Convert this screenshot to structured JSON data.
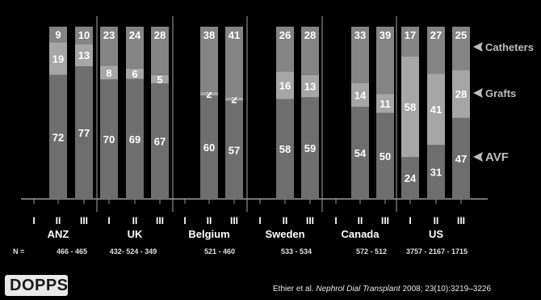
{
  "chart_data": {
    "type": "bar",
    "stacked": true,
    "colors": {
      "AVF": "#6e6e6e",
      "Grafts": "#a6a6a6",
      "Catheters": "#848484",
      "text": "#ffffff",
      "legend_text": "#bdbdbd"
    },
    "legend": [
      "Catheters",
      "Grafts",
      "AVF"
    ],
    "n_label": "N =",
    "countries": [
      {
        "name": "ANZ",
        "n_label": "466 - 465",
        "phases": [
          {
            "label": "II",
            "AVF": 72,
            "Grafts": 19,
            "Catheters": 9
          },
          {
            "label": "III",
            "AVF": 77,
            "Grafts": 13,
            "Catheters": 10
          }
        ],
        "tick_labels": [
          "I",
          "II",
          "III"
        ]
      },
      {
        "name": "UK",
        "n_label": "432- 524 - 349",
        "phases": [
          {
            "label": "I",
            "AVF": 70,
            "Grafts": 8,
            "Catheters": 23
          },
          {
            "label": "II",
            "AVF": 69,
            "Grafts": 6,
            "Catheters": 24
          },
          {
            "label": "III",
            "AVF": 67,
            "Grafts": 5,
            "Catheters": 28
          }
        ],
        "tick_labels": [
          "I",
          "II",
          "III"
        ]
      },
      {
        "name": "Belgium",
        "n_label": "521 - 460",
        "phases": [
          {
            "label": "II",
            "AVF": 60,
            "Grafts": 2,
            "Catheters": 38
          },
          {
            "label": "III",
            "AVF": 57,
            "Grafts": 2,
            "Catheters": 41
          }
        ],
        "tick_labels": [
          "I",
          "II",
          "III"
        ]
      },
      {
        "name": "Sweden",
        "n_label": "533 - 534",
        "phases": [
          {
            "label": "II",
            "AVF": 58,
            "Grafts": 16,
            "Catheters": 26
          },
          {
            "label": "III",
            "AVF": 59,
            "Grafts": 13,
            "Catheters": 28
          }
        ],
        "tick_labels": [
          "I",
          "II",
          "III"
        ]
      },
      {
        "name": "Canada",
        "n_label": "572 - 512",
        "phases": [
          {
            "label": "II",
            "AVF": 54,
            "Grafts": 14,
            "Catheters": 33
          },
          {
            "label": "III",
            "AVF": 50,
            "Grafts": 11,
            "Catheters": 39
          }
        ],
        "tick_labels": [
          "I",
          "II",
          "III"
        ]
      },
      {
        "name": "US",
        "n_label": "3757 - 2167 - 1715",
        "phases": [
          {
            "label": "I",
            "AVF": 24,
            "Grafts": 58,
            "Catheters": 17
          },
          {
            "label": "II",
            "AVF": 31,
            "Grafts": 41,
            "Catheters": 27
          },
          {
            "label": "III",
            "AVF": 47,
            "Grafts": 28,
            "Catheters": 25
          }
        ],
        "tick_labels": [
          "I",
          "II",
          "III"
        ]
      }
    ],
    "ylim": [
      0,
      100
    ]
  },
  "logo_text": "DOPPS",
  "citation": {
    "authors": "Ethier et al.",
    "journal": "Nephrol Dial Transplant",
    "details": "2008; 23(10):3219–3226"
  }
}
